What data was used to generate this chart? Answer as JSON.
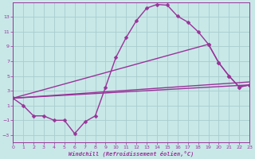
{
  "background_color": "#c8e8e8",
  "grid_color": "#aacccc",
  "line_color": "#993399",
  "xlabel": "Windchill (Refroidissement éolien,°C)",
  "xlim": [
    0,
    23
  ],
  "ylim": [
    -4,
    15
  ],
  "xticks": [
    0,
    1,
    2,
    3,
    4,
    5,
    6,
    7,
    8,
    9,
    10,
    11,
    12,
    13,
    14,
    15,
    16,
    17,
    18,
    19,
    20,
    21,
    22,
    23
  ],
  "yticks": [
    -3,
    -1,
    1,
    3,
    5,
    7,
    9,
    11,
    13
  ],
  "curve1_x": [
    0,
    1,
    2,
    3,
    4,
    5,
    6,
    7,
    8,
    9,
    10,
    11,
    12,
    13,
    14,
    15,
    16,
    17,
    18,
    19,
    20,
    21,
    22,
    23
  ],
  "curve1_y": [
    2.0,
    1.0,
    -0.4,
    -0.4,
    -1.0,
    -1.0,
    -2.8,
    -1.2,
    -0.4,
    3.5,
    7.5,
    10.2,
    12.5,
    14.2,
    14.7,
    14.6,
    13.1,
    12.3,
    11.0,
    9.3,
    6.8,
    5.0,
    3.5,
    3.8
  ],
  "curve2_x": [
    0,
    19,
    20,
    21,
    22,
    23
  ],
  "curve2_y": [
    2.0,
    9.3,
    6.8,
    5.0,
    3.5,
    3.8
  ],
  "line1_x": [
    0,
    23
  ],
  "line1_y": [
    2.0,
    3.8
  ],
  "line2_x": [
    0,
    23
  ],
  "line2_y": [
    2.0,
    4.2
  ]
}
